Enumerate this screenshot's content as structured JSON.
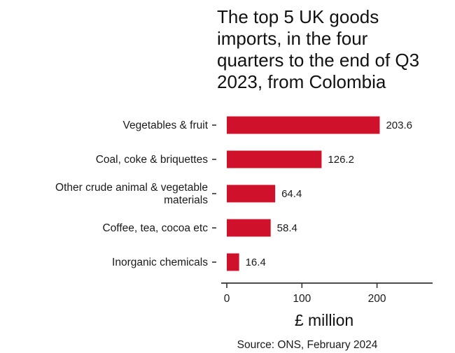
{
  "chart_data": {
    "type": "bar",
    "orientation": "horizontal",
    "title_lines": [
      "The top 5 UK goods",
      "imports, in the four",
      "quarters to the end of Q3",
      "2023, from Colombia"
    ],
    "categories": [
      [
        "Vegetables & fruit"
      ],
      [
        "Coal, coke & briquettes"
      ],
      [
        "Other crude animal & vegetable",
        "materials"
      ],
      [
        "Coffee, tea, cocoa etc"
      ],
      [
        "Inorganic chemicals"
      ]
    ],
    "values": [
      203.6,
      126.2,
      64.4,
      58.4,
      16.4
    ],
    "value_labels": [
      "203.6",
      "126.2",
      "64.4",
      "58.4",
      "16.4"
    ],
    "xlabel": "£ million",
    "xlim": [
      0,
      270
    ],
    "x_ticks": [
      0,
      100,
      200
    ],
    "x_tick_labels": [
      "0",
      "100",
      "200"
    ],
    "bar_color": "#d0112b",
    "grid": false,
    "source": "Source: ONS, February 2024"
  }
}
